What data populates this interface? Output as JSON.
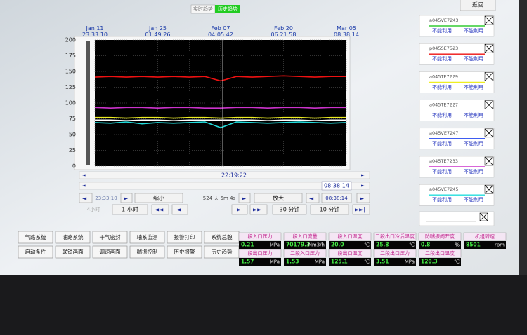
{
  "header": {
    "tabs": [
      "实时趋势",
      "历史趋势"
    ],
    "back_button": "返回"
  },
  "chart_data": {
    "type": "line",
    "background": "#000000",
    "grid": true,
    "categories": [
      "Jan 11 23:33:10",
      null,
      null,
      null,
      "Jan 25 01:49:26",
      null,
      null,
      null,
      "Feb 07 04:05:42",
      null,
      null,
      null,
      "Feb 20 06:21:58",
      null,
      null,
      null,
      "Mar 05 08:38:14"
    ],
    "ylim": [
      0,
      200
    ],
    "yticks": [
      0,
      25,
      50,
      75,
      100,
      125,
      150,
      175,
      200
    ],
    "series": [
      {
        "name": "a045VE7243",
        "color": "#33cc33",
        "status": [
          "不能利用",
          "不能利用"
        ],
        "values": [
          null,
          null,
          null,
          null,
          null,
          null,
          null,
          null,
          null,
          null,
          null,
          null,
          null,
          null,
          null,
          null,
          null
        ]
      },
      {
        "name": "p045SE7523",
        "color": "#ee1111",
        "status": [
          "不能利用",
          "不能利用"
        ],
        "values": [
          141,
          142,
          141,
          142,
          141,
          142,
          141,
          142,
          135,
          142,
          141,
          142,
          143,
          142,
          141,
          142,
          142
        ]
      },
      {
        "name": "a045TE7229",
        "color": "#eeee22",
        "status": [
          "不能利用",
          "不能利用"
        ],
        "values": [
          77,
          77,
          76,
          77,
          77,
          76,
          77,
          77,
          76,
          77,
          77,
          76,
          77,
          77,
          76,
          77,
          77
        ]
      },
      {
        "name": "a045TE7227",
        "color": "#ffffff",
        "status": [
          "不能利用",
          "不能利用"
        ],
        "values": [
          73,
          73,
          72,
          73,
          73,
          72,
          73,
          73,
          73,
          73,
          73,
          72,
          73,
          73,
          72,
          73,
          73
        ]
      },
      {
        "name": "a045VE7247",
        "color": "#2244ee",
        "status": [
          "不能利用",
          "不能利用"
        ],
        "values": [
          null,
          null,
          null,
          null,
          null,
          null,
          null,
          null,
          null,
          null,
          null,
          null,
          null,
          null,
          null,
          null,
          null
        ]
      },
      {
        "name": "a045TE7233",
        "color": "#cc33cc",
        "status": [
          "不能利用",
          "不能利用"
        ],
        "values": [
          93,
          92,
          93,
          93,
          92,
          93,
          93,
          92,
          92,
          93,
          93,
          92,
          93,
          93,
          92,
          93,
          93
        ]
      },
      {
        "name": "a045VE7245",
        "color": "#22dddd",
        "status": [
          "不能利用",
          "不能利用"
        ],
        "values": [
          69,
          68,
          70,
          67,
          69,
          68,
          69,
          70,
          61,
          70,
          69,
          68,
          69,
          70,
          69,
          68,
          69
        ]
      }
    ]
  },
  "timeline": {
    "cursor_time": "22:19:22",
    "end_time": "08:38:14"
  },
  "controls": {
    "start_time": "23:33:10",
    "zoom_out": "缩小",
    "span": "524 天 5m 4s",
    "zoom_in": "放大",
    "end_time": "08:38:14",
    "range_left": "4小时",
    "range_1h": "1 小时",
    "range_30m": "30 分钟",
    "range_10m": "10 分钟"
  },
  "nav_buttons": [
    [
      "气路系统",
      "油路系统",
      "干气密封",
      "轴系监测",
      "报警打印",
      "系统总貌"
    ],
    [
      "启动条件",
      "联锁画面",
      "调速画面",
      "喘振控制",
      "历史报警",
      "历史趋势"
    ]
  ],
  "readings": [
    [
      {
        "label": "段入口压力",
        "value": "0.21",
        "unit": "MPa"
      },
      {
        "label": "段入口流量",
        "value": "70179.3",
        "unit": "Nm3/h"
      },
      {
        "label": "段入口温度",
        "value": "20.0",
        "unit": "℃"
      },
      {
        "label": "二段出口冷后温度",
        "value": "25.8",
        "unit": "℃"
      },
      {
        "label": "防喘振阀开度",
        "value": "0.8",
        "unit": "%"
      },
      {
        "label": "机组转速",
        "value": "8501",
        "unit": "rpm"
      }
    ],
    [
      {
        "label": "段出口压力",
        "value": "1.57",
        "unit": "MPa"
      },
      {
        "label": "二段入口压力",
        "value": "1.53",
        "unit": "MPa"
      },
      {
        "label": "段出口温度",
        "value": "125.1",
        "unit": "℃"
      },
      {
        "label": "二段出口压力",
        "value": "3.51",
        "unit": "MPa"
      },
      {
        "label": "二段出口温度",
        "value": "120.3",
        "unit": "℃"
      }
    ]
  ]
}
